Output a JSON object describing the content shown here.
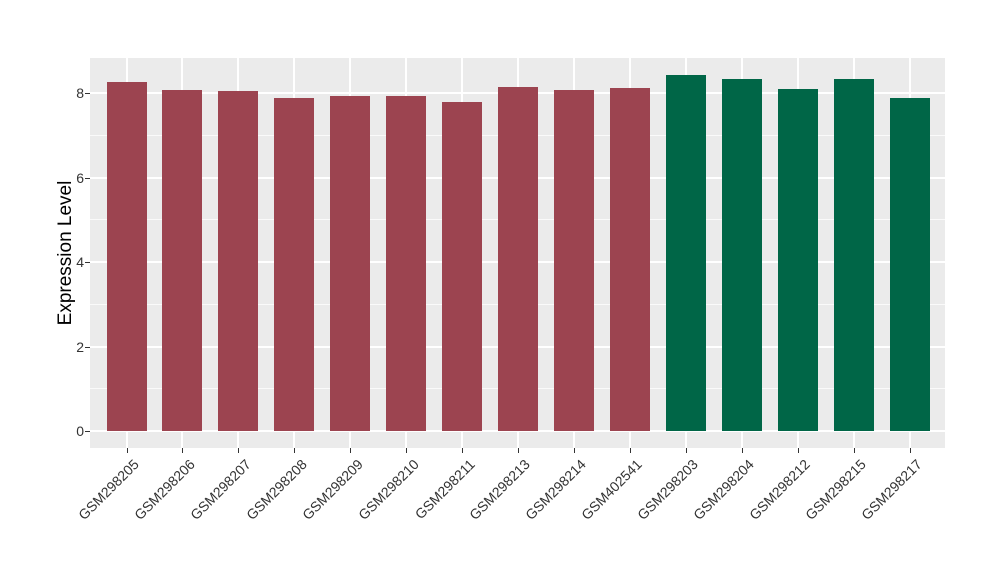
{
  "figure": {
    "background": "#FFFFFF",
    "panel_background": "#EBEBEB",
    "grid_color": "#FFFFFF",
    "axis_text_color": "#333333"
  },
  "chart_data": {
    "type": "bar",
    "title": "",
    "xlabel": "",
    "ylabel": "Expression Level",
    "ylim": [
      0,
      8.83
    ],
    "yticks": [
      0,
      2,
      4,
      6,
      8
    ],
    "grid": true,
    "legend": "none",
    "x_tick_rotation_deg": 45,
    "categories": [
      "GSM298205",
      "GSM298206",
      "GSM298207",
      "GSM298208",
      "GSM298209",
      "GSM298210",
      "GSM298211",
      "GSM298213",
      "GSM298214",
      "GSM402541",
      "GSM298203",
      "GSM298204",
      "GSM298212",
      "GSM298215",
      "GSM298217"
    ],
    "values": [
      8.25,
      8.06,
      8.04,
      7.87,
      7.92,
      7.92,
      7.78,
      8.15,
      8.08,
      8.12,
      8.43,
      8.33,
      8.09,
      8.33,
      7.87
    ],
    "bar_groups": [
      0,
      0,
      0,
      0,
      0,
      0,
      0,
      0,
      0,
      0,
      1,
      1,
      1,
      1,
      1
    ],
    "group_colors": [
      "#9C4450",
      "#006647"
    ]
  }
}
